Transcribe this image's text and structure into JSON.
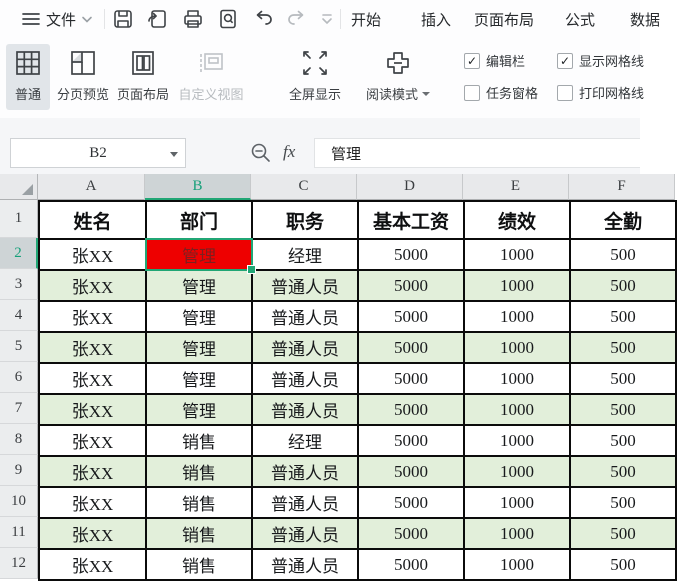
{
  "menu_bar": {
    "file_label": "文件",
    "tabs": [
      "开始",
      "插入",
      "页面布局",
      "公式",
      "数据"
    ],
    "quick_icons": [
      "save",
      "export",
      "print",
      "print-preview",
      "undo",
      "redo",
      "more-commands"
    ]
  },
  "ribbon": {
    "view_buttons": [
      {
        "label": "普通",
        "selected": true
      },
      {
        "label": "分页预览",
        "selected": false
      },
      {
        "label": "页面布局",
        "selected": false
      },
      {
        "label": "自定义视图",
        "selected": false,
        "disabled": true
      },
      {
        "label": "全屏显示",
        "selected": false
      },
      {
        "label": "阅读模式",
        "selected": false,
        "has_dropdown": true
      }
    ],
    "checkboxes": [
      {
        "label": "编辑栏",
        "checked": true
      },
      {
        "label": "任务窗格",
        "checked": false
      },
      {
        "label": "显示网格线",
        "checked": true
      },
      {
        "label": "打印网格线",
        "checked": false
      }
    ]
  },
  "formula_bar": {
    "cell_ref": "B2",
    "fx_label": "fx",
    "value": "管理"
  },
  "sheet": {
    "selected_cell": "B2",
    "selected_column_index": 1,
    "selected_row_number": 2,
    "column_letters": [
      "A",
      "B",
      "C",
      "D",
      "E",
      "F"
    ],
    "header_row": [
      "姓名",
      "部门",
      "职务",
      "基本工资",
      "绩效",
      "全勤"
    ],
    "rows": [
      {
        "n": 2,
        "cells": [
          "张XX",
          "管理",
          "经理",
          "5000",
          "1000",
          "500"
        ],
        "banded": false
      },
      {
        "n": 3,
        "cells": [
          "张XX",
          "管理",
          "普通人员",
          "5000",
          "1000",
          "500"
        ],
        "banded": true
      },
      {
        "n": 4,
        "cells": [
          "张XX",
          "管理",
          "普通人员",
          "5000",
          "1000",
          "500"
        ],
        "banded": false
      },
      {
        "n": 5,
        "cells": [
          "张XX",
          "管理",
          "普通人员",
          "5000",
          "1000",
          "500"
        ],
        "banded": true
      },
      {
        "n": 6,
        "cells": [
          "张XX",
          "管理",
          "普通人员",
          "5000",
          "1000",
          "500"
        ],
        "banded": false
      },
      {
        "n": 7,
        "cells": [
          "张XX",
          "管理",
          "普通人员",
          "5000",
          "1000",
          "500"
        ],
        "banded": true
      },
      {
        "n": 8,
        "cells": [
          "张XX",
          "销售",
          "经理",
          "5000",
          "1000",
          "500"
        ],
        "banded": false
      },
      {
        "n": 9,
        "cells": [
          "张XX",
          "销售",
          "普通人员",
          "5000",
          "1000",
          "500"
        ],
        "banded": true
      },
      {
        "n": 10,
        "cells": [
          "张XX",
          "销售",
          "普通人员",
          "5000",
          "1000",
          "500"
        ],
        "banded": false
      },
      {
        "n": 11,
        "cells": [
          "张XX",
          "销售",
          "普通人员",
          "5000",
          "1000",
          "500"
        ],
        "banded": true
      },
      {
        "n": 12,
        "cells": [
          "张XX",
          "销售",
          "普通人员",
          "5000",
          "1000",
          "500"
        ],
        "banded": false
      }
    ],
    "colors": {
      "selection_green": "#21a675",
      "highlight_cell_red": "#ee0000",
      "red_cell_text": "#7d1f1f",
      "band_green": "#e2efda"
    }
  }
}
